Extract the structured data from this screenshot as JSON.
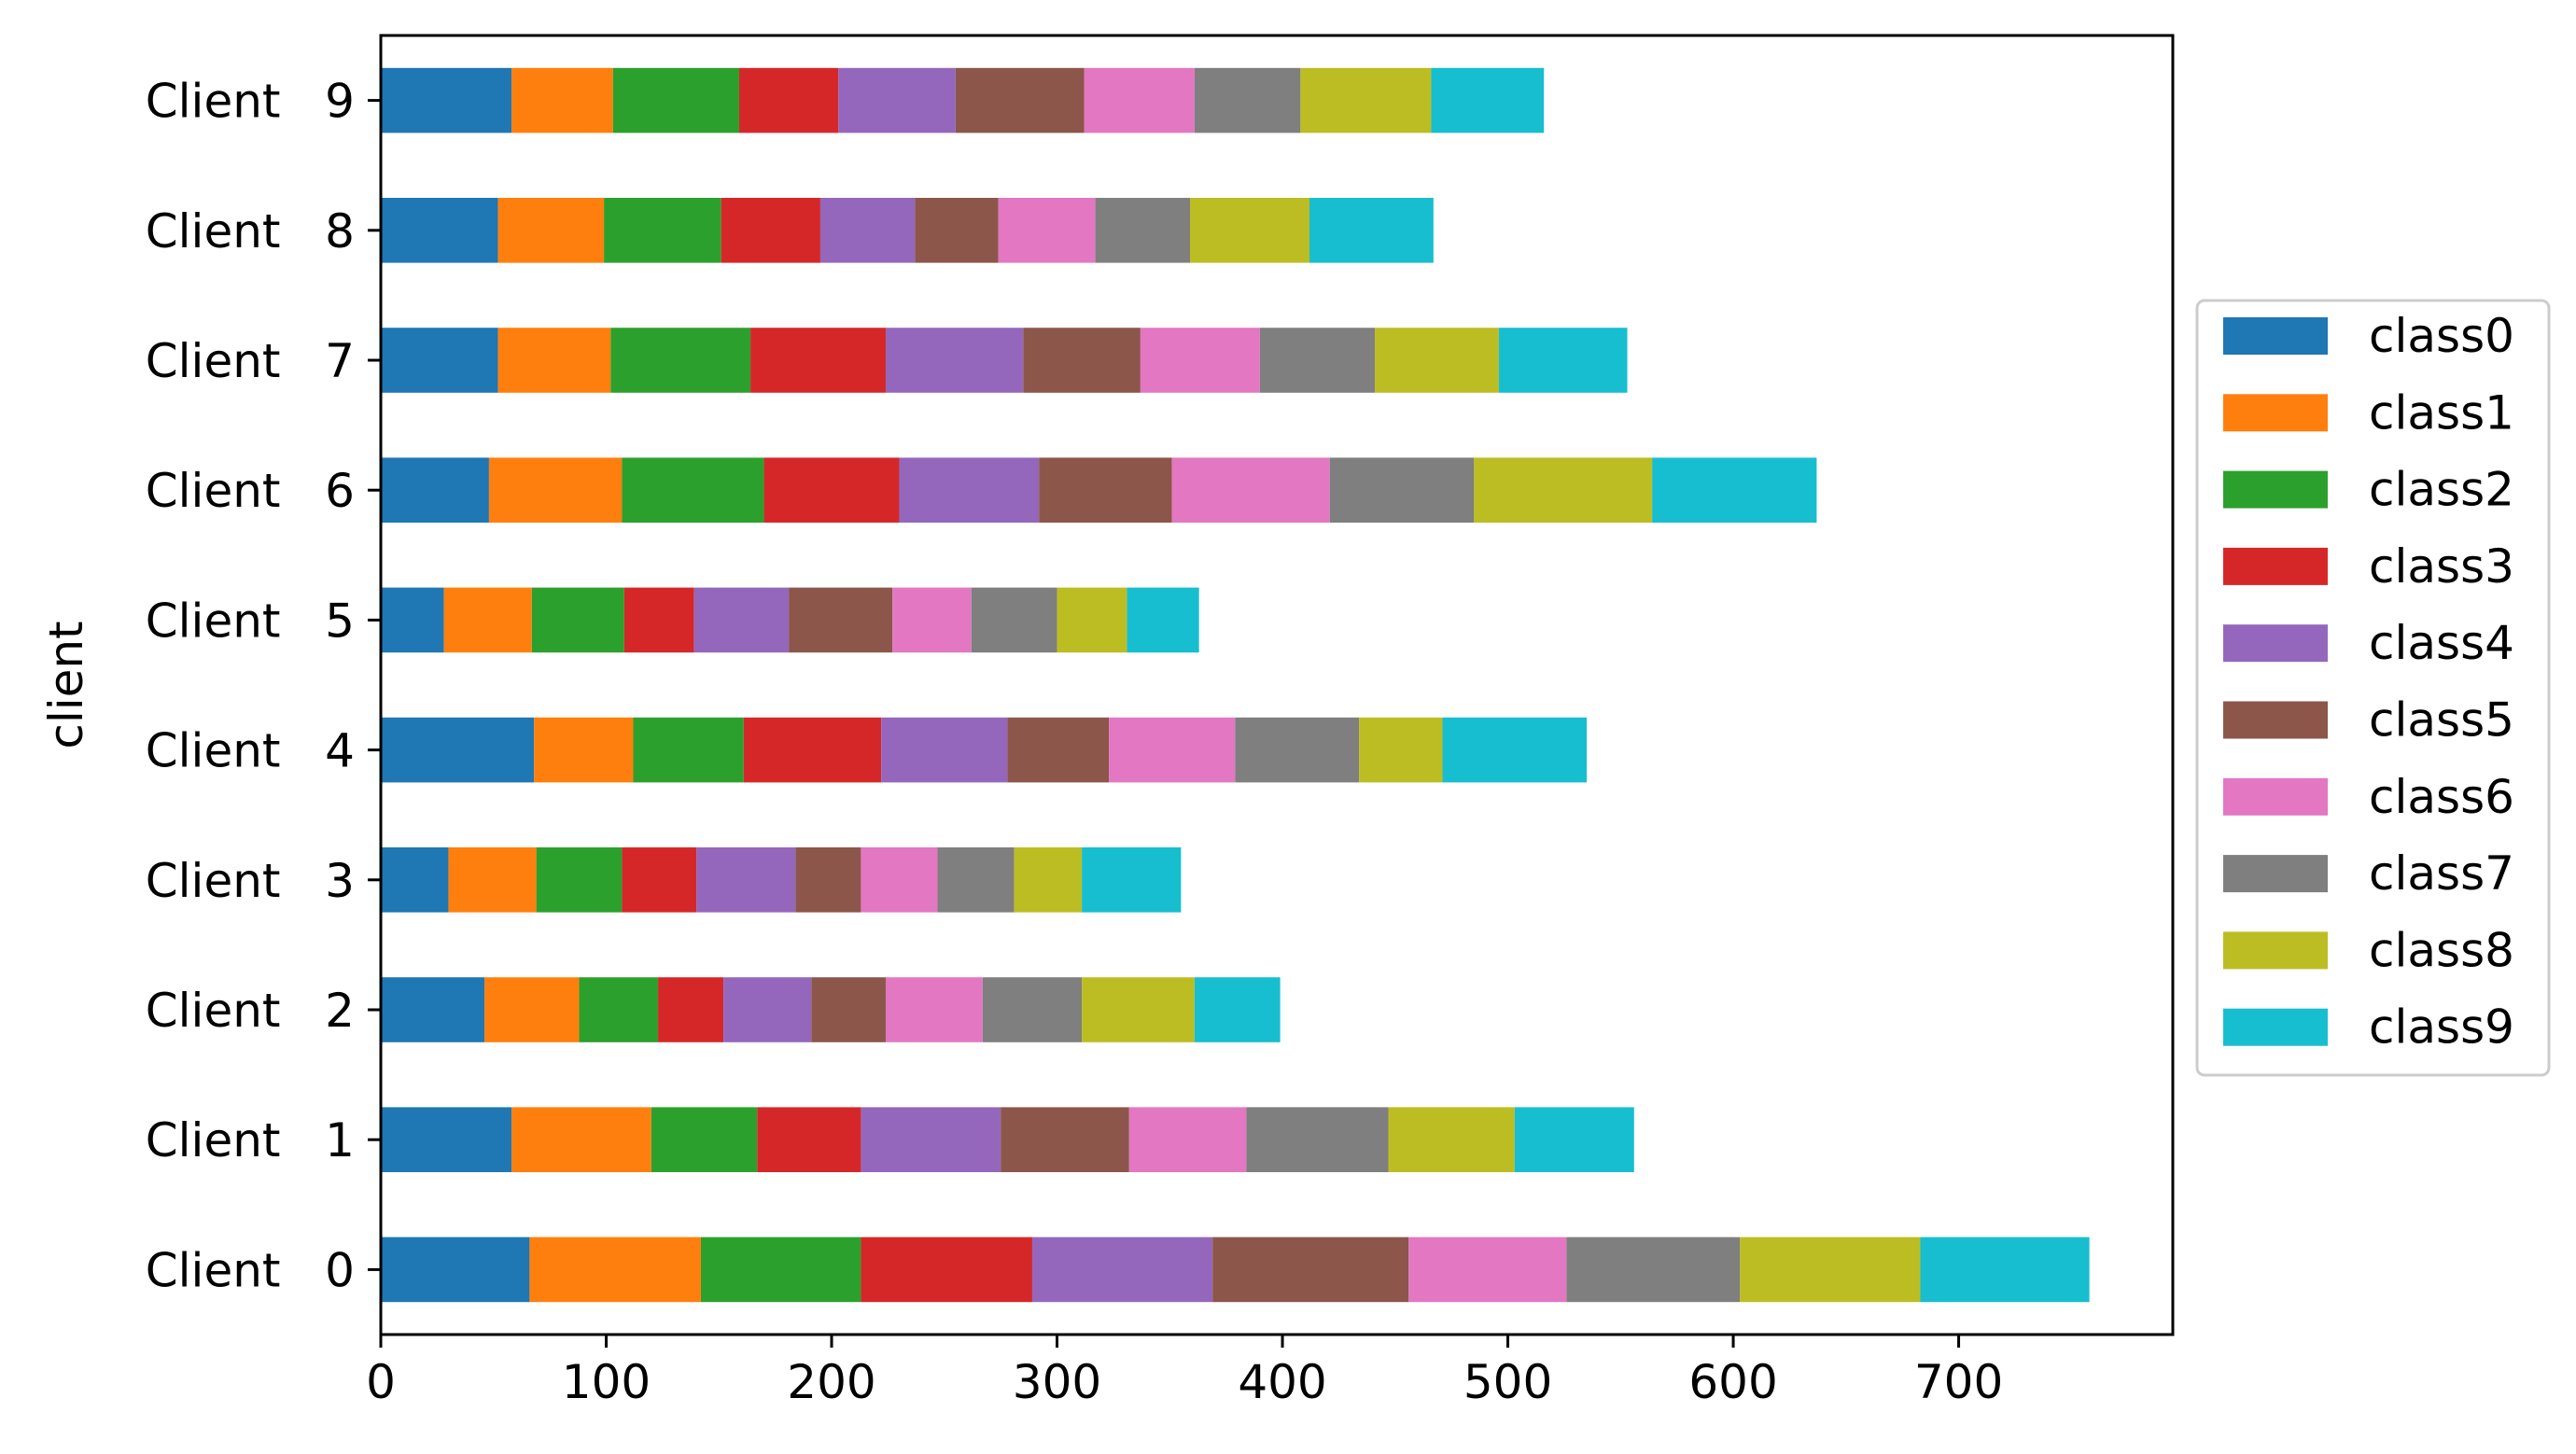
{
  "chart_data": {
    "type": "bar",
    "orientation": "horizontal",
    "stacked": true,
    "title": "",
    "xlabel": "",
    "ylabel": "client",
    "xlim": [
      0,
      795
    ],
    "xticks": [
      0,
      100,
      200,
      300,
      400,
      500,
      600,
      700
    ],
    "grid": false,
    "legend_position": "right",
    "categories": [
      "Client   0",
      "Client   1",
      "Client   2",
      "Client   3",
      "Client   4",
      "Client   5",
      "Client   6",
      "Client   7",
      "Client   8",
      "Client   9"
    ],
    "series": [
      {
        "name": "class0",
        "color": "#1f77b4",
        "values": [
          66,
          58,
          46,
          30,
          68,
          28,
          48,
          52,
          52,
          58
        ]
      },
      {
        "name": "class1",
        "color": "#ff7f0e",
        "values": [
          76,
          62,
          42,
          39,
          44,
          39,
          59,
          50,
          47,
          45
        ]
      },
      {
        "name": "class2",
        "color": "#2ca02c",
        "values": [
          71,
          47,
          35,
          38,
          49,
          41,
          63,
          62,
          52,
          56
        ]
      },
      {
        "name": "class3",
        "color": "#d62728",
        "values": [
          76,
          46,
          29,
          33,
          61,
          31,
          60,
          60,
          44,
          44
        ]
      },
      {
        "name": "class4",
        "color": "#9467bd",
        "values": [
          80,
          62,
          39,
          44,
          56,
          42,
          62,
          61,
          42,
          52
        ]
      },
      {
        "name": "class5",
        "color": "#8c564b",
        "values": [
          87,
          57,
          33,
          29,
          45,
          46,
          59,
          52,
          37,
          57
        ]
      },
      {
        "name": "class6",
        "color": "#e377c2",
        "values": [
          70,
          52,
          43,
          34,
          56,
          35,
          70,
          53,
          43,
          49
        ]
      },
      {
        "name": "class7",
        "color": "#7f7f7f",
        "values": [
          77,
          63,
          44,
          34,
          55,
          38,
          64,
          51,
          42,
          47
        ]
      },
      {
        "name": "class8",
        "color": "#bcbd22",
        "values": [
          80,
          56,
          50,
          30,
          37,
          31,
          79,
          55,
          53,
          58
        ]
      },
      {
        "name": "class9",
        "color": "#17becf",
        "values": [
          75,
          53,
          38,
          44,
          64,
          32,
          73,
          57,
          55,
          50
        ]
      }
    ]
  }
}
